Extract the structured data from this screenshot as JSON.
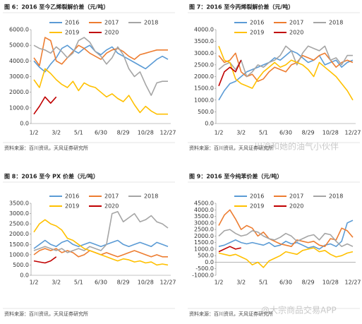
{
  "chart_data": [
    {
      "type": "line",
      "title": "图 6：2016 至今乙烯裂解价差（元/吨）",
      "source": "资料来源：百川资讯，天风证券研究所",
      "categories": [
        "1/2",
        null,
        null,
        null,
        "3/2",
        null,
        null,
        null,
        "5/1",
        null,
        null,
        null,
        "6/30",
        null,
        null,
        null,
        "8/29",
        null,
        null,
        null,
        "10/28",
        null,
        null,
        null,
        "12/27"
      ],
      "ylim": [
        0,
        6000
      ],
      "yticks": [
        {
          "value": 0,
          "label": "0.0"
        },
        {
          "value": 1000,
          "label": "1000.0"
        },
        {
          "value": 2000,
          "label": "2000.0"
        },
        {
          "value": 3000,
          "label": "3000.0"
        },
        {
          "value": 4000,
          "label": "4000.0"
        },
        {
          "value": 5000,
          "label": "5000.0"
        },
        {
          "value": 6000,
          "label": "6000.0"
        }
      ],
      "series": [
        {
          "name": "2016",
          "color": "#5b9bd5",
          "values": [
            4000,
            3600,
            3300,
            3800,
            4200,
            4800,
            5000,
            4700,
            4500,
            4800,
            5000,
            4600,
            4400,
            4700,
            4900,
            4500,
            4300,
            4100,
            3900,
            3700,
            3500,
            3800,
            4100,
            4300,
            4100
          ]
        },
        {
          "name": "2017",
          "color": "#ed7d31",
          "values": [
            4200,
            3700,
            5500,
            5300,
            4000,
            3800,
            4200,
            4600,
            5000,
            4800,
            4500,
            4300,
            4100,
            4500,
            4700,
            4800,
            4600,
            4300,
            4100,
            4400,
            4500,
            4600,
            4700,
            4700,
            4700
          ]
        },
        {
          "name": "2018",
          "color": "#a5a5a5",
          "values": [
            5000,
            4800,
            4700,
            4500,
            4900,
            4600,
            4200,
            4500,
            5300,
            5500,
            5200,
            4600,
            4300,
            3800,
            4200,
            4900,
            4400,
            3500,
            3000,
            3300,
            2500,
            1800,
            2600,
            2700,
            2700
          ]
        },
        {
          "name": "2019",
          "color": "#ffc000",
          "values": [
            2800,
            2300,
            3500,
            3200,
            2800,
            2500,
            2300,
            2700,
            2100,
            2600,
            2400,
            2300,
            2000,
            1700,
            1900,
            1600,
            1400,
            1800,
            1200,
            700,
            1100,
            800,
            600,
            600,
            600
          ]
        },
        {
          "name": "2020",
          "color": "#c00000",
          "values": [
            600,
            1100,
            1700,
            1300,
            1700,
            null,
            null,
            null,
            null,
            null,
            null,
            null,
            null,
            null,
            null,
            null,
            null,
            null,
            null,
            null,
            null,
            null,
            null,
            null,
            null
          ]
        }
      ]
    },
    {
      "type": "line",
      "title": "图 7：2016 至今丙烯裂解价差（元/吨）",
      "source": "资料来源：百川资讯，天风证券研究所",
      "categories": [
        "1/2",
        null,
        null,
        null,
        "3/2",
        null,
        null,
        null,
        "5/1",
        null,
        null,
        null,
        "6/30",
        null,
        null,
        null,
        "8/29",
        null,
        null,
        null,
        "10/28",
        null,
        null,
        null,
        "12/27"
      ],
      "ylim": [
        0,
        4000
      ],
      "yticks": [
        {
          "value": 0,
          "label": "0.0"
        },
        {
          "value": 500,
          "label": "500.0"
        },
        {
          "value": 1000,
          "label": "1000.0"
        },
        {
          "value": 1500,
          "label": "1500.0"
        },
        {
          "value": 2000,
          "label": "2000.0"
        },
        {
          "value": 2500,
          "label": "2500.0"
        },
        {
          "value": 3000,
          "label": "3000.0"
        },
        {
          "value": 3500,
          "label": "3500.0"
        },
        {
          "value": 4000,
          "label": "4000.0"
        }
      ],
      "series": [
        {
          "name": "2016",
          "color": "#5b9bd5",
          "values": [
            1000,
            1400,
            1700,
            1800,
            2000,
            2200,
            2300,
            2400,
            2500,
            2600,
            2800,
            2700,
            2900,
            3100,
            3000,
            2800,
            2600,
            2700,
            2900,
            2500,
            2600,
            2700,
            2400,
            2600,
            2700
          ]
        },
        {
          "name": "2017",
          "color": "#ed7d31",
          "values": [
            2900,
            2600,
            2700,
            3000,
            2200,
            2000,
            2100,
            1800,
            1900,
            2200,
            2400,
            2300,
            2200,
            2500,
            2600,
            2900,
            2800,
            2700,
            2900,
            3000,
            2700,
            2400,
            2600,
            2700,
            2600
          ]
        },
        {
          "name": "2018",
          "color": "#a5a5a5",
          "values": [
            2300,
            2500,
            2600,
            2300,
            2700,
            2000,
            2200,
            2500,
            2400,
            2600,
            2700,
            2900,
            3300,
            3100,
            2500,
            3000,
            3300,
            3200,
            3100,
            3300,
            2700,
            2800,
            2500,
            2900,
            2900
          ]
        },
        {
          "name": "2019",
          "color": "#ffc000",
          "values": [
            3300,
            2700,
            2600,
            1900,
            1700,
            1600,
            1500,
            1900,
            2200,
            2400,
            2600,
            2400,
            2500,
            2700,
            2600,
            2500,
            2300,
            2000,
            2600,
            2400,
            2200,
            2000,
            1700,
            1400,
            1000
          ]
        },
        {
          "name": "2020",
          "color": "#c00000",
          "values": [
            1600,
            2200,
            2400,
            2200,
            2700,
            null,
            null,
            null,
            null,
            null,
            null,
            null,
            null,
            null,
            null,
            null,
            null,
            null,
            null,
            null,
            null,
            null,
            null,
            null,
            null
          ]
        }
      ]
    },
    {
      "type": "line",
      "title": "图 8：2016 至今 PX 价差（元/吨）",
      "source": "资料来源：百川资讯，天风证券研究所",
      "categories": [
        "1/2",
        null,
        null,
        null,
        "3/2",
        null,
        null,
        null,
        "5/1",
        null,
        null,
        null,
        "6/30",
        null,
        null,
        null,
        "8/29",
        null,
        null,
        null,
        "10/28",
        null,
        null,
        null,
        "12/27"
      ],
      "ylim": [
        0,
        3500
      ],
      "yticks": [
        {
          "value": 0,
          "label": "0.0"
        },
        {
          "value": 500,
          "label": "500.0"
        },
        {
          "value": 1000,
          "label": "1000.0"
        },
        {
          "value": 1500,
          "label": "1500.0"
        },
        {
          "value": 2000,
          "label": "2000.0"
        },
        {
          "value": 2500,
          "label": "2500.0"
        },
        {
          "value": 3000,
          "label": "3000.0"
        },
        {
          "value": 3500,
          "label": "3500.0"
        }
      ],
      "series": [
        {
          "name": "2016",
          "color": "#5b9bd5",
          "values": [
            1300,
            1500,
            1700,
            1500,
            1400,
            1600,
            1700,
            1500,
            1400,
            1500,
            1600,
            1500,
            1400,
            1500,
            1600,
            1700,
            1500,
            1400,
            1500,
            1600,
            1500,
            1400,
            1600,
            1500,
            1400
          ]
        },
        {
          "name": "2017",
          "color": "#ed7d31",
          "values": [
            1000,
            1200,
            1300,
            1200,
            1300,
            1100,
            1200,
            1100,
            900,
            1000,
            1200,
            1100,
            1000,
            1100,
            1000,
            900,
            1000,
            1100,
            1200,
            1100,
            1000,
            900,
            1000,
            900,
            900
          ]
        },
        {
          "name": "2018",
          "color": "#a5a5a5",
          "values": [
            1200,
            1300,
            1400,
            1300,
            1200,
            1300,
            1100,
            1200,
            1300,
            1200,
            1400,
            1300,
            1200,
            1500,
            3000,
            3100,
            2600,
            2800,
            3000,
            2600,
            2700,
            2900,
            2600,
            2500,
            2300
          ]
        },
        {
          "name": "2019",
          "color": "#ffc000",
          "values": [
            2100,
            2500,
            2700,
            2500,
            2400,
            2200,
            1800,
            1700,
            1500,
            1300,
            1200,
            1100,
            1000,
            900,
            800,
            700,
            800,
            750,
            650,
            700,
            600,
            650,
            500,
            550,
            500
          ]
        },
        {
          "name": "2020",
          "color": "#c00000",
          "values": [
            700,
            650,
            600,
            700,
            900,
            null,
            null,
            null,
            null,
            null,
            null,
            null,
            null,
            null,
            null,
            null,
            null,
            null,
            null,
            null,
            null,
            null,
            null,
            null,
            null
          ]
        }
      ]
    },
    {
      "type": "line",
      "title": "图 9：2016 至今纯苯价差（元/吨）",
      "source": "资料来源：百川资讯，天风证券研究所",
      "categories": [
        "1/2",
        null,
        null,
        null,
        "3/2",
        null,
        null,
        null,
        "5/1",
        null,
        null,
        null,
        "6/30",
        null,
        null,
        null,
        "8/29",
        null,
        null,
        null,
        "10/28",
        null,
        null,
        null,
        "12/27"
      ],
      "ylim": [
        -1000,
        4500
      ],
      "yticks": [
        {
          "value": -1000,
          "label": "-1000.0"
        },
        {
          "value": -500,
          "label": "-500.0"
        },
        {
          "value": 0,
          "label": "0.0"
        },
        {
          "value": 500,
          "label": "500.0"
        },
        {
          "value": 1000,
          "label": "1000.0"
        },
        {
          "value": 1500,
          "label": "1500.0"
        },
        {
          "value": 2000,
          "label": "2000.0"
        },
        {
          "value": 2500,
          "label": "2500.0"
        },
        {
          "value": 3000,
          "label": "3000.0"
        },
        {
          "value": 3500,
          "label": "3500.0"
        },
        {
          "value": 4000,
          "label": "4000.0"
        },
        {
          "value": 4500,
          "label": "4500.0"
        }
      ],
      "series": [
        {
          "name": "2016",
          "color": "#5b9bd5",
          "values": [
            1200,
            1300,
            1500,
            1700,
            1500,
            1400,
            1500,
            1400,
            1300,
            1500,
            1200,
            1300,
            1600,
            1400,
            1500,
            1300,
            1100,
            1200,
            1000,
            1300,
            1400,
            1200,
            1600,
            3000,
            3200
          ]
        },
        {
          "name": "2017",
          "color": "#ed7d31",
          "values": [
            2800,
            3600,
            4000,
            3300,
            2500,
            2800,
            2600,
            2000,
            2300,
            1800,
            1600,
            1400,
            1300,
            1200,
            1700,
            1600,
            1500,
            1600,
            1300,
            1200,
            1800,
            1700,
            2600,
            2400,
            1900
          ]
        },
        {
          "name": "2018",
          "color": "#a5a5a5",
          "values": [
            2000,
            2400,
            2500,
            2200,
            2000,
            2100,
            2400,
            2300,
            2000,
            1800,
            1700,
            1900,
            2200,
            2000,
            1600,
            1800,
            2000,
            2100,
            1700,
            2200,
            2100,
            1600,
            1200,
            1400,
            1200
          ]
        },
        {
          "name": "2019",
          "color": "#ffc000",
          "values": [
            700,
            600,
            500,
            600,
            400,
            200,
            -200,
            0,
            -400,
            100,
            300,
            500,
            800,
            700,
            600,
            900,
            1000,
            1100,
            800,
            900,
            600,
            400,
            500,
            700,
            800
          ]
        },
        {
          "name": "2020",
          "color": "#c00000",
          "values": [
            800,
            1000,
            1200,
            1000,
            1100,
            null,
            null,
            null,
            null,
            null,
            null,
            null,
            null,
            null,
            null,
            null,
            null,
            null,
            null,
            null,
            null,
            null,
            null,
            null,
            null
          ]
        }
      ]
    }
  ],
  "watermarks": [
    "川渝和她的油气小伙伴",
    "@大宗商品交易APP"
  ]
}
